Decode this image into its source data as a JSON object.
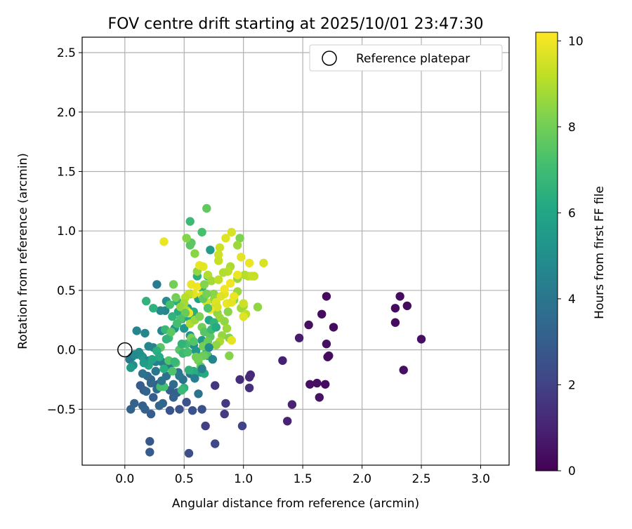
{
  "chart_data": {
    "type": "scatter",
    "title": "FOV centre drift starting at 2025/10/01 23:47:30",
    "xlabel": "Angular distance from reference (arcmin)",
    "ylabel": "Rotation from reference (arcmin)",
    "xlim": [
      -0.36,
      3.24
    ],
    "ylim": [
      -0.97,
      2.63
    ],
    "xticks": [
      "0.0",
      "0.5",
      "1.0",
      "1.5",
      "2.0",
      "2.5",
      "3.0"
    ],
    "yticks": [
      "−0.5",
      "0.0",
      "0.5",
      "1.0",
      "1.5",
      "2.0",
      "2.5"
    ],
    "grid": true,
    "legend": {
      "placement": "top-right",
      "entries": [
        "Reference platepar"
      ]
    },
    "reference": {
      "x": 0.0,
      "y": 0.0
    },
    "colorbar": {
      "label": "Hours from first FF file",
      "range": [
        0,
        10.2
      ],
      "ticks": [
        "0",
        "2",
        "4",
        "6",
        "8",
        "10"
      ],
      "colormap": "viridis"
    },
    "points": [
      [
        1.7,
        0.45,
        0.3
      ],
      [
        1.66,
        0.3,
        0.3
      ],
      [
        1.76,
        0.19,
        0.3
      ],
      [
        1.55,
        0.21,
        0.4
      ],
      [
        1.7,
        0.05,
        0.4
      ],
      [
        1.72,
        -0.05,
        0.4
      ],
      [
        1.71,
        -0.06,
        0.3
      ],
      [
        1.56,
        -0.29,
        0.4
      ],
      [
        1.62,
        -0.28,
        0.4
      ],
      [
        1.69,
        -0.29,
        0.3
      ],
      [
        1.64,
        -0.4,
        0.5
      ],
      [
        2.32,
        0.45,
        0.3
      ],
      [
        2.28,
        0.35,
        0.3
      ],
      [
        2.38,
        0.37,
        0.3
      ],
      [
        2.28,
        0.23,
        0.3
      ],
      [
        2.5,
        0.09,
        0.4
      ],
      [
        2.35,
        -0.17,
        0.4
      ],
      [
        1.47,
        0.1,
        0.8
      ],
      [
        1.33,
        -0.09,
        0.9
      ],
      [
        1.41,
        -0.46,
        1.0
      ],
      [
        1.37,
        -0.6,
        1.0
      ],
      [
        1.06,
        -0.21,
        1.1
      ],
      [
        1.05,
        -0.23,
        1.2
      ],
      [
        0.97,
        -0.25,
        1.3
      ],
      [
        1.05,
        -0.32,
        1.4
      ],
      [
        0.76,
        -0.3,
        1.6
      ],
      [
        0.85,
        -0.45,
        1.7
      ],
      [
        0.84,
        -0.54,
        1.8
      ],
      [
        0.68,
        -0.64,
        1.9
      ],
      [
        0.99,
        -0.64,
        2.0
      ],
      [
        0.76,
        -0.79,
        2.2
      ],
      [
        0.54,
        -0.87,
        2.4
      ],
      [
        0.65,
        -0.5,
        2.5
      ],
      [
        0.57,
        -0.51,
        2.6
      ],
      [
        0.52,
        -0.44,
        2.6
      ],
      [
        0.46,
        -0.5,
        2.6
      ],
      [
        0.38,
        -0.51,
        2.7
      ],
      [
        0.21,
        -0.77,
        2.8
      ],
      [
        0.21,
        -0.86,
        2.9
      ],
      [
        0.22,
        -0.54,
        3.0
      ],
      [
        0.15,
        -0.47,
        3.1
      ],
      [
        0.08,
        -0.45,
        3.2
      ],
      [
        0.05,
        -0.5,
        3.2
      ],
      [
        0.17,
        -0.5,
        3.2
      ],
      [
        0.29,
        -0.47,
        3.4
      ],
      [
        0.32,
        -0.45,
        3.4
      ],
      [
        0.41,
        -0.4,
        3.2
      ],
      [
        0.44,
        -0.36,
        3.2
      ],
      [
        0.38,
        -0.34,
        3.1
      ],
      [
        0.13,
        -0.3,
        3.0
      ],
      [
        0.16,
        -0.34,
        3.0
      ],
      [
        0.27,
        -0.33,
        3.5
      ],
      [
        0.28,
        -0.29,
        3.1
      ],
      [
        0.22,
        -0.25,
        3.3
      ],
      [
        0.19,
        -0.22,
        3.6
      ],
      [
        0.15,
        -0.2,
        3.8
      ],
      [
        0.35,
        -0.22,
        3.8
      ],
      [
        0.45,
        -0.19,
        3.9
      ],
      [
        0.55,
        -0.2,
        4.0
      ],
      [
        0.62,
        -0.37,
        3.9
      ],
      [
        0.4,
        -0.11,
        4.2
      ],
      [
        0.37,
        -0.13,
        4.2
      ],
      [
        0.31,
        -0.1,
        4.3
      ],
      [
        0.26,
        -0.1,
        4.4
      ],
      [
        0.2,
        -0.09,
        4.4
      ],
      [
        0.15,
        -0.06,
        4.4
      ],
      [
        0.1,
        -0.04,
        4.5
      ],
      [
        0.06,
        -0.06,
        4.5
      ],
      [
        0.04,
        -0.08,
        4.2
      ],
      [
        0.07,
        -0.13,
        5.0
      ],
      [
        0.05,
        -0.15,
        5.5
      ],
      [
        0.1,
        0.16,
        4.6
      ],
      [
        0.17,
        0.14,
        4.6
      ],
      [
        0.2,
        0.03,
        4.6
      ],
      [
        0.24,
        0.02,
        4.6
      ],
      [
        0.3,
        0.02,
        4.6
      ],
      [
        0.31,
        0.16,
        4.7
      ],
      [
        0.34,
        0.33,
        4.6
      ],
      [
        0.3,
        0.33,
        4.8
      ],
      [
        0.27,
        0.55,
        4.2
      ],
      [
        0.35,
        0.41,
        5.0
      ],
      [
        0.42,
        0.18,
        5.2
      ],
      [
        0.5,
        0.18,
        5.3
      ],
      [
        0.55,
        0.12,
        5.2
      ],
      [
        0.58,
        0.04,
        4.9
      ],
      [
        0.6,
        -0.01,
        5.3
      ],
      [
        0.65,
        0.08,
        5.4
      ],
      [
        0.69,
        0.0,
        5.5
      ],
      [
        0.7,
        -0.05,
        5.7
      ],
      [
        0.64,
        -0.19,
        5.7
      ],
      [
        0.67,
        -0.2,
        6.2
      ],
      [
        0.58,
        -0.18,
        6.3
      ],
      [
        0.54,
        -0.17,
        6.5
      ],
      [
        0.5,
        -0.32,
        6.6
      ],
      [
        0.48,
        -0.34,
        6.9
      ],
      [
        0.3,
        -0.31,
        7.1
      ],
      [
        0.33,
        -0.31,
        7.2
      ],
      [
        0.4,
        -0.18,
        7.3
      ],
      [
        0.37,
        -0.09,
        7.4
      ],
      [
        0.43,
        -0.11,
        7.5
      ],
      [
        0.46,
        0.0,
        7.5
      ],
      [
        0.52,
        0.05,
        7.1
      ],
      [
        0.56,
        0.1,
        8.1
      ],
      [
        0.55,
        0.26,
        6.1
      ],
      [
        0.58,
        0.32,
        6.3
      ],
      [
        0.62,
        0.43,
        5.7
      ],
      [
        0.55,
        0.47,
        5.5
      ],
      [
        0.53,
        0.35,
        5.6
      ],
      [
        0.48,
        0.26,
        5.8
      ],
      [
        0.45,
        0.32,
        6.2
      ],
      [
        0.44,
        0.41,
        6.4
      ],
      [
        0.38,
        0.38,
        7.2
      ],
      [
        0.4,
        0.28,
        6.6
      ],
      [
        0.34,
        0.17,
        6.8
      ],
      [
        0.37,
        0.1,
        7.0
      ],
      [
        0.48,
        0.05,
        6.6
      ],
      [
        0.65,
        0.52,
        6.5
      ],
      [
        0.7,
        0.62,
        6.8
      ],
      [
        0.61,
        0.62,
        6.4
      ],
      [
        0.72,
        0.84,
        5.6
      ],
      [
        0.55,
        1.08,
        6.9
      ],
      [
        0.65,
        0.99,
        7.2
      ],
      [
        0.69,
        1.19,
        7.7
      ],
      [
        0.55,
        0.88,
        7.6
      ],
      [
        0.56,
        0.9,
        7.6
      ],
      [
        0.59,
        0.81,
        8.4
      ],
      [
        0.52,
        0.94,
        8.3
      ],
      [
        0.33,
        0.91,
        9.9
      ],
      [
        0.7,
        0.63,
        9.0
      ],
      [
        0.73,
        0.58,
        8.8
      ],
      [
        0.75,
        0.47,
        8.4
      ],
      [
        0.75,
        0.42,
        8.5
      ],
      [
        0.76,
        0.36,
        8.7
      ],
      [
        0.78,
        0.31,
        8.5
      ],
      [
        0.8,
        0.27,
        8.7
      ],
      [
        0.84,
        0.24,
        8.5
      ],
      [
        0.86,
        0.18,
        8.7
      ],
      [
        0.82,
        0.12,
        8.6
      ],
      [
        0.8,
        0.07,
        8.9
      ],
      [
        0.77,
        0.04,
        8.5
      ],
      [
        0.88,
        0.1,
        8.3
      ],
      [
        0.88,
        -0.05,
        8.3
      ],
      [
        0.9,
        0.08,
        9.8
      ],
      [
        0.87,
        0.32,
        8.4
      ],
      [
        0.92,
        0.42,
        8.4
      ],
      [
        0.95,
        0.49,
        8.7
      ],
      [
        0.95,
        0.6,
        8.6
      ],
      [
        0.97,
        0.94,
        8.2
      ],
      [
        0.95,
        0.88,
        8.7
      ],
      [
        0.89,
        0.7,
        8.9
      ],
      [
        0.87,
        0.66,
        9.1
      ],
      [
        0.83,
        0.65,
        9.0
      ],
      [
        0.79,
        0.75,
        9.3
      ],
      [
        0.79,
        0.8,
        9.4
      ],
      [
        0.8,
        0.86,
        9.4
      ],
      [
        0.85,
        0.94,
        9.7
      ],
      [
        0.9,
        0.99,
        9.6
      ],
      [
        0.79,
        0.59,
        9.2
      ],
      [
        0.84,
        0.47,
        9.8
      ],
      [
        0.86,
        0.39,
        9.9
      ],
      [
        0.9,
        0.4,
        9.8
      ],
      [
        0.92,
        0.45,
        9.9
      ],
      [
        0.98,
        0.35,
        8.8
      ],
      [
        1.0,
        0.37,
        8.7
      ],
      [
        1.02,
        0.3,
        9.2
      ],
      [
        1.0,
        0.39,
        9.4
      ],
      [
        1.0,
        0.28,
        9.7
      ],
      [
        1.01,
        0.63,
        9.0
      ],
      [
        1.04,
        0.62,
        9.1
      ],
      [
        1.07,
        0.62,
        9.3
      ],
      [
        1.09,
        0.62,
        9.3
      ],
      [
        1.12,
        0.36,
        8.5
      ],
      [
        1.17,
        0.73,
        9.6
      ],
      [
        1.05,
        0.73,
        9.9
      ],
      [
        0.98,
        0.78,
        9.8
      ],
      [
        0.95,
        0.63,
        9.9
      ],
      [
        0.89,
        0.56,
        10.0
      ],
      [
        0.84,
        0.51,
        10.0
      ],
      [
        0.81,
        0.45,
        9.7
      ],
      [
        0.77,
        0.4,
        9.7
      ],
      [
        0.78,
        0.36,
        9.6
      ],
      [
        0.72,
        0.34,
        9.9
      ],
      [
        0.69,
        0.4,
        9.5
      ],
      [
        0.65,
        0.46,
        9.8
      ],
      [
        0.61,
        0.53,
        10.0
      ],
      [
        0.58,
        0.47,
        9.8
      ],
      [
        0.56,
        0.55,
        9.9
      ],
      [
        0.54,
        0.47,
        9.3
      ],
      [
        0.51,
        0.44,
        9.1
      ],
      [
        0.5,
        0.39,
        8.8
      ],
      [
        0.47,
        0.36,
        8.6
      ],
      [
        0.52,
        0.33,
        9.0
      ],
      [
        0.54,
        0.31,
        9.9
      ],
      [
        0.55,
        0.22,
        9.0
      ],
      [
        0.59,
        0.25,
        8.7
      ],
      [
        0.63,
        0.28,
        8.2
      ],
      [
        0.65,
        0.19,
        8.0
      ],
      [
        0.67,
        0.15,
        7.5
      ],
      [
        0.72,
        0.11,
        7.6
      ],
      [
        0.7,
        0.07,
        7.8
      ],
      [
        0.66,
        0.03,
        8.0
      ],
      [
        0.69,
        -0.04,
        7.6
      ],
      [
        0.66,
        -0.05,
        7.9
      ],
      [
        0.62,
        -0.09,
        8.1
      ],
      [
        0.6,
        -0.06,
        8.0
      ],
      [
        0.64,
        -0.14,
        7.7
      ],
      [
        0.7,
        0.35,
        7.3
      ],
      [
        0.66,
        0.43,
        7.7
      ],
      [
        0.69,
        0.47,
        8.1
      ],
      [
        0.67,
        0.55,
        8.3
      ],
      [
        0.61,
        0.66,
        8.5
      ],
      [
        0.63,
        0.71,
        9.9
      ],
      [
        0.66,
        0.7,
        9.8
      ],
      [
        0.71,
        0.25,
        6.0
      ],
      [
        0.75,
        0.23,
        6.6
      ],
      [
        0.73,
        0.17,
        6.9
      ],
      [
        0.77,
        0.19,
        6.2
      ],
      [
        0.41,
        0.55,
        8.0
      ],
      [
        0.43,
        0.44,
        8.0
      ],
      [
        0.51,
        0.31,
        7.8
      ],
      [
        0.47,
        0.26,
        7.3
      ],
      [
        0.44,
        0.22,
        7.1
      ],
      [
        0.39,
        0.15,
        7.6
      ],
      [
        0.35,
        0.09,
        6.6
      ],
      [
        0.3,
        0.02,
        7.6
      ],
      [
        0.27,
        -0.01,
        6.4
      ],
      [
        0.2,
        -0.13,
        6.0
      ],
      [
        0.16,
        -0.11,
        5.6
      ],
      [
        0.14,
        -0.05,
        5.3
      ],
      [
        0.12,
        -0.02,
        5.0
      ],
      [
        0.08,
        -0.04,
        4.8
      ],
      [
        0.23,
        -0.08,
        6.0
      ],
      [
        0.29,
        -0.06,
        6.2
      ],
      [
        0.33,
        -0.16,
        6.4
      ],
      [
        0.42,
        -0.1,
        6.8
      ],
      [
        0.49,
        -0.03,
        6.9
      ],
      [
        0.53,
        -0.02,
        7.2
      ],
      [
        0.58,
        0.07,
        7.4
      ],
      [
        0.24,
        0.35,
        6.5
      ],
      [
        0.18,
        0.41,
        6.6
      ],
      [
        0.24,
        -0.4,
        3.0
      ],
      [
        0.18,
        -0.35,
        3.3
      ],
      [
        0.41,
        -0.29,
        3.6
      ],
      [
        0.49,
        -0.25,
        3.8
      ],
      [
        0.26,
        -0.18,
        4.0
      ],
      [
        0.31,
        -0.26,
        3.9
      ],
      [
        0.22,
        -0.28,
        3.4
      ],
      [
        0.46,
        -0.22,
        4.1
      ],
      [
        0.59,
        -0.24,
        4.3
      ],
      [
        0.65,
        -0.16,
        4.4
      ],
      [
        0.74,
        -0.08,
        4.6
      ],
      [
        0.71,
        0.02,
        4.9
      ]
    ]
  }
}
